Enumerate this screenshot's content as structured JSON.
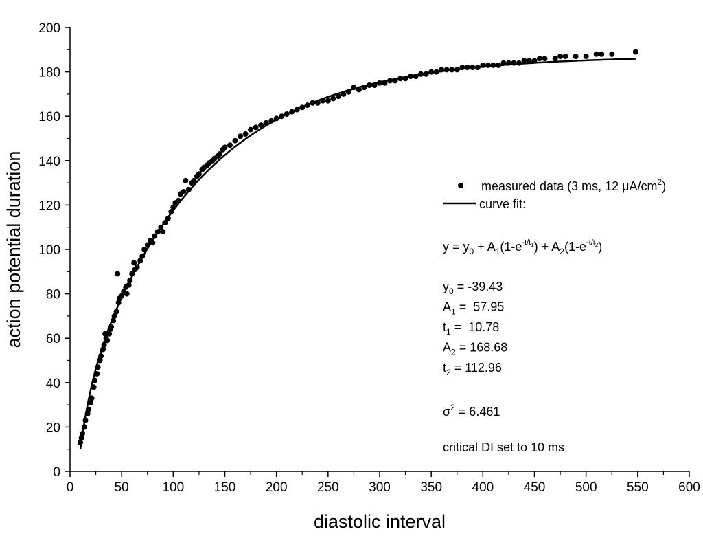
{
  "chart_data": {
    "type": "scatter",
    "title": "",
    "xlabel": "diastolic interval",
    "ylabel": "action potential duration",
    "xlim": [
      0,
      600
    ],
    "ylim": [
      0,
      200
    ],
    "x_major_ticks": [
      0,
      50,
      100,
      150,
      200,
      250,
      300,
      350,
      400,
      450,
      500,
      550,
      600
    ],
    "y_major_ticks": [
      0,
      20,
      40,
      60,
      80,
      100,
      120,
      140,
      160,
      180,
      200
    ],
    "grid": false,
    "legend_position": "right",
    "series": [
      {
        "name": "measured data (3 ms, 12 μA/cm²)",
        "kind": "points",
        "color": "#000000",
        "points": [
          [
            10,
            13
          ],
          [
            11,
            15
          ],
          [
            12,
            17
          ],
          [
            14,
            20
          ],
          [
            15,
            23
          ],
          [
            17,
            26
          ],
          [
            18,
            28
          ],
          [
            20,
            31
          ],
          [
            21,
            33
          ],
          [
            23,
            38
          ],
          [
            24,
            41
          ],
          [
            26,
            44
          ],
          [
            27,
            47
          ],
          [
            29,
            50
          ],
          [
            30,
            52
          ],
          [
            32,
            55
          ],
          [
            33,
            57
          ],
          [
            34,
            62
          ],
          [
            35,
            60
          ],
          [
            36,
            59
          ],
          [
            38,
            62
          ],
          [
            39,
            64
          ],
          [
            40,
            65
          ],
          [
            42,
            68
          ],
          [
            43,
            70
          ],
          [
            45,
            72
          ],
          [
            46,
            89
          ],
          [
            47,
            76
          ],
          [
            48,
            78
          ],
          [
            50,
            79
          ],
          [
            52,
            81
          ],
          [
            54,
            83
          ],
          [
            55,
            80
          ],
          [
            57,
            84
          ],
          [
            58,
            86
          ],
          [
            60,
            89
          ],
          [
            62,
            94
          ],
          [
            63,
            91
          ],
          [
            65,
            92
          ],
          [
            68,
            95
          ],
          [
            70,
            97
          ],
          [
            72,
            100
          ],
          [
            75,
            102
          ],
          [
            78,
            104
          ],
          [
            80,
            103
          ],
          [
            82,
            106
          ],
          [
            85,
            108
          ],
          [
            88,
            110
          ],
          [
            90,
            108
          ],
          [
            92,
            112
          ],
          [
            95,
            114
          ],
          [
            98,
            117
          ],
          [
            100,
            119
          ],
          [
            102,
            121
          ],
          [
            105,
            122
          ],
          [
            107,
            125
          ],
          [
            110,
            126
          ],
          [
            112,
            131
          ],
          [
            115,
            127
          ],
          [
            118,
            130
          ],
          [
            120,
            131
          ],
          [
            123,
            133
          ],
          [
            125,
            134
          ],
          [
            128,
            136
          ],
          [
            130,
            137
          ],
          [
            133,
            138
          ],
          [
            135,
            139
          ],
          [
            138,
            140
          ],
          [
            140,
            141
          ],
          [
            143,
            142
          ],
          [
            145,
            143
          ],
          [
            148,
            145
          ],
          [
            150,
            146
          ],
          [
            155,
            147
          ],
          [
            160,
            149
          ],
          [
            165,
            151
          ],
          [
            170,
            152
          ],
          [
            175,
            154
          ],
          [
            180,
            155
          ],
          [
            185,
            156
          ],
          [
            190,
            157
          ],
          [
            195,
            158
          ],
          [
            200,
            159
          ],
          [
            205,
            160
          ],
          [
            210,
            161
          ],
          [
            215,
            162
          ],
          [
            220,
            163
          ],
          [
            225,
            164
          ],
          [
            230,
            165
          ],
          [
            235,
            166
          ],
          [
            240,
            166
          ],
          [
            245,
            167
          ],
          [
            250,
            167
          ],
          [
            255,
            168
          ],
          [
            260,
            169
          ],
          [
            265,
            170
          ],
          [
            270,
            171
          ],
          [
            275,
            173
          ],
          [
            280,
            172
          ],
          [
            285,
            173
          ],
          [
            290,
            174
          ],
          [
            295,
            174
          ],
          [
            300,
            175
          ],
          [
            305,
            175
          ],
          [
            310,
            176
          ],
          [
            315,
            176
          ],
          [
            320,
            177
          ],
          [
            325,
            177
          ],
          [
            330,
            178
          ],
          [
            335,
            178
          ],
          [
            340,
            179
          ],
          [
            345,
            179
          ],
          [
            350,
            180
          ],
          [
            355,
            180
          ],
          [
            360,
            181
          ],
          [
            365,
            181
          ],
          [
            370,
            181
          ],
          [
            375,
            181
          ],
          [
            380,
            182
          ],
          [
            385,
            182
          ],
          [
            390,
            182
          ],
          [
            395,
            182
          ],
          [
            400,
            183
          ],
          [
            405,
            183
          ],
          [
            410,
            183
          ],
          [
            415,
            183
          ],
          [
            420,
            184
          ],
          [
            425,
            184
          ],
          [
            430,
            184
          ],
          [
            435,
            184
          ],
          [
            440,
            185
          ],
          [
            445,
            185
          ],
          [
            450,
            185
          ],
          [
            455,
            186
          ],
          [
            460,
            186
          ],
          [
            470,
            186
          ],
          [
            475,
            187
          ],
          [
            480,
            187
          ],
          [
            490,
            187
          ],
          [
            500,
            187
          ],
          [
            510,
            188
          ],
          [
            515,
            188
          ],
          [
            525,
            188
          ],
          [
            548,
            189
          ]
        ]
      },
      {
        "name": "curve fit:",
        "kind": "line",
        "color": "#000000",
        "x_range": [
          10,
          548
        ]
      }
    ],
    "annotations": {
      "equation": {
        "lead": "y = y",
        "sub0": "0",
        "mid1": " + A",
        "sub1": "1",
        "open1": "(1-e",
        "exp1": "-t/t",
        "expsub1": "1",
        "mid2": ") + A",
        "sub2": "2",
        "open2": "(1-e",
        "exp2": "-t/t",
        "expsub2": "2",
        "close": ")"
      },
      "params": [
        {
          "symbol": "y",
          "sub": "0",
          "text": " = -39.43",
          "value": -39.43
        },
        {
          "symbol": "A",
          "sub": "1",
          "text": " =  57.95",
          "value": 57.95
        },
        {
          "symbol": "t",
          "sub": "1",
          "text": " =  10.78",
          "value": 10.78
        },
        {
          "symbol": "A",
          "sub": "2",
          "text": " = 168.68",
          "value": 168.68
        },
        {
          "symbol": "t",
          "sub": "2",
          "text": " = 112.96",
          "value": 112.96
        }
      ],
      "sigma": {
        "symbol": "σ",
        "sup": "2",
        "text": " = 6.461",
        "value": 6.461
      },
      "note": "critical DI set to 10 ms"
    }
  }
}
